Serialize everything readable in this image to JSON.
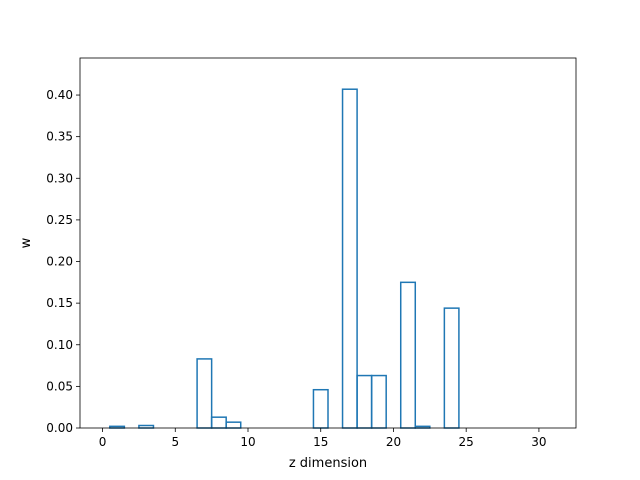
{
  "chart_data": {
    "type": "bar",
    "style": "step",
    "title": "",
    "xlabel": "z dimension",
    "ylabel": "w",
    "xlim": [
      -1.55,
      32.55
    ],
    "ylim": [
      0,
      0.4445
    ],
    "x_ticks": [
      0,
      5,
      10,
      15,
      20,
      25,
      30
    ],
    "x_tick_labels": [
      "0",
      "5",
      "10",
      "15",
      "20",
      "25",
      "30"
    ],
    "y_ticks": [
      0,
      0.05,
      0.1,
      0.15,
      0.2,
      0.25,
      0.3,
      0.35,
      0.4
    ],
    "y_tick_labels": [
      "0.00",
      "0.05",
      "0.10",
      "0.15",
      "0.20",
      "0.25",
      "0.30",
      "0.35",
      "0.40"
    ],
    "grid": false,
    "line_color": "#1f77b4",
    "categories": [
      0,
      1,
      2,
      3,
      4,
      5,
      6,
      7,
      8,
      9,
      10,
      11,
      12,
      13,
      14,
      15,
      16,
      17,
      18,
      19,
      20,
      21,
      22,
      23,
      24,
      25,
      26,
      27,
      28,
      29,
      30,
      31
    ],
    "values": [
      0.0,
      0.002,
      0.0,
      0.003,
      0.0,
      0.0,
      0.0,
      0.083,
      0.013,
      0.007,
      0.0,
      0.0,
      0.0,
      0.0,
      0.0,
      0.046,
      0.0,
      0.407,
      0.063,
      0.063,
      0.0,
      0.175,
      0.002,
      0.0,
      0.144,
      0.0,
      0.0,
      0.0,
      0.0,
      0.0,
      0.0,
      0.0
    ]
  }
}
